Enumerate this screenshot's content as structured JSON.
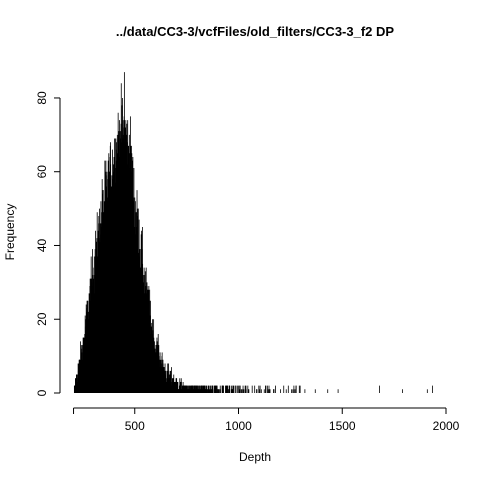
{
  "chart_data": {
    "type": "bar",
    "title": "../data/CC3-3/vcfFiles/old_filters/CC3-3_f2 DP",
    "xlabel": "Depth",
    "ylabel": "Frequency",
    "xlim": [
      0,
      2000
    ],
    "ylim": [
      0,
      80
    ],
    "x_ticks": [
      500,
      1000,
      1500,
      2000
    ],
    "y_ticks": [
      0,
      20,
      40,
      60,
      80
    ],
    "bin_width": 1,
    "x_data_range": [
      205,
      1940
    ],
    "peak": {
      "x": 450,
      "y": 87
    },
    "distribution_profile": [
      [
        205,
        0
      ],
      [
        220,
        4
      ],
      [
        250,
        12
      ],
      [
        300,
        32
      ],
      [
        350,
        50
      ],
      [
        400,
        62
      ],
      [
        430,
        68
      ],
      [
        450,
        70
      ],
      [
        480,
        62
      ],
      [
        500,
        50
      ],
      [
        550,
        28
      ],
      [
        600,
        12
      ],
      [
        650,
        5
      ],
      [
        700,
        2.5
      ],
      [
        800,
        1
      ],
      [
        900,
        0.5
      ],
      [
        1000,
        0.3
      ],
      [
        1100,
        0.15
      ],
      [
        1300,
        0.05
      ]
    ],
    "sparse_outliers": [
      {
        "x": 1050,
        "y": 1
      },
      {
        "x": 1110,
        "y": 1
      },
      {
        "x": 1150,
        "y": 1
      },
      {
        "x": 1170,
        "y": 1
      },
      {
        "x": 1230,
        "y": 1
      },
      {
        "x": 1240,
        "y": 2
      },
      {
        "x": 1320,
        "y": 1
      },
      {
        "x": 1370,
        "y": 1
      },
      {
        "x": 1430,
        "y": 1
      },
      {
        "x": 1480,
        "y": 1
      },
      {
        "x": 1680,
        "y": 2
      },
      {
        "x": 1790,
        "y": 1
      },
      {
        "x": 1910,
        "y": 1
      },
      {
        "x": 1935,
        "y": 2
      }
    ],
    "grid": false,
    "legend": "none",
    "bar_color": "#000000"
  }
}
